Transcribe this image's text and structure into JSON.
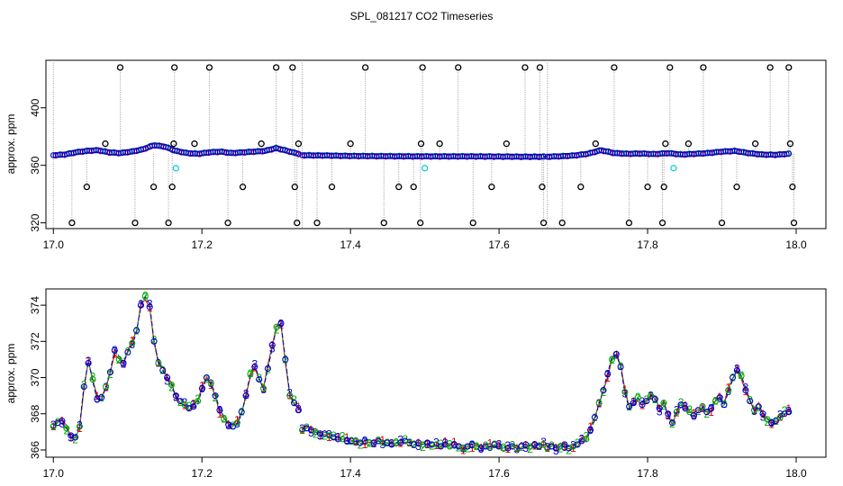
{
  "chart_data": [
    {
      "type": "scatter",
      "panel": "top",
      "title": "SPL_081217  CO2 Timeseries",
      "xlabel": "",
      "ylabel": "approx. ppm",
      "xlim": [
        16.99,
        18.04
      ],
      "ylim": [
        316,
        433
      ],
      "xticks": [
        17.0,
        17.2,
        17.4,
        17.6,
        17.8,
        18.0
      ],
      "xtick_labels": [
        "17.0",
        "17.2",
        "17.4",
        "17.6",
        "17.8",
        "18.0"
      ],
      "yticks": [
        320,
        360,
        400
      ],
      "ytick_labels": [
        "320",
        "360",
        "400"
      ],
      "colors": {
        "baseline": "#0000cc",
        "red": "#dd0000",
        "green": "#00aa00",
        "cyan": "#00cccc",
        "outlier": "#000000",
        "spike": "#999999"
      },
      "baseline_segments": [
        {
          "x_start": 17.0,
          "x_end": 17.33,
          "y": [
            367,
            367.5,
            369,
            370,
            370.5,
            369,
            368.5,
            369.5,
            371,
            374,
            373,
            370,
            368.5,
            368,
            369,
            369.5,
            368.5,
            369,
            369.5,
            370,
            372,
            370,
            368
          ]
        },
        {
          "x_start": 17.335,
          "x_end": 17.66,
          "y": [
            367,
            366.8,
            366.5,
            366.4,
            366.3,
            366.2,
            366.2,
            366.2,
            366.1,
            366,
            366
          ]
        },
        {
          "x_start": 17.665,
          "x_end": 17.99,
          "y": [
            366,
            366.3,
            366.8,
            368,
            370.5,
            368.5,
            368,
            368.2,
            367.8,
            368.5,
            367.5,
            368,
            368.5,
            369.5,
            370,
            368.5,
            367.5,
            367.3,
            368
          ]
        }
      ],
      "outliers": [
        {
          "x": 17.025,
          "y": 320
        },
        {
          "x": 17.045,
          "y": 345
        },
        {
          "x": 17.07,
          "y": 375
        },
        {
          "x": 17.09,
          "y": 428
        },
        {
          "x": 17.11,
          "y": 320
        },
        {
          "x": 17.135,
          "y": 345
        },
        {
          "x": 17.155,
          "y": 320
        },
        {
          "x": 17.16,
          "y": 345
        },
        {
          "x": 17.162,
          "y": 375
        },
        {
          "x": 17.163,
          "y": 428
        },
        {
          "x": 17.19,
          "y": 375
        },
        {
          "x": 17.21,
          "y": 428
        },
        {
          "x": 17.235,
          "y": 320
        },
        {
          "x": 17.255,
          "y": 345
        },
        {
          "x": 17.28,
          "y": 375
        },
        {
          "x": 17.3,
          "y": 428
        },
        {
          "x": 17.322,
          "y": 428
        },
        {
          "x": 17.325,
          "y": 345
        },
        {
          "x": 17.328,
          "y": 320
        },
        {
          "x": 17.33,
          "y": 375
        },
        {
          "x": 17.355,
          "y": 320
        },
        {
          "x": 17.375,
          "y": 345
        },
        {
          "x": 17.4,
          "y": 375
        },
        {
          "x": 17.42,
          "y": 428
        },
        {
          "x": 17.445,
          "y": 320
        },
        {
          "x": 17.465,
          "y": 345
        },
        {
          "x": 17.485,
          "y": 345
        },
        {
          "x": 17.494,
          "y": 320
        },
        {
          "x": 17.495,
          "y": 375
        },
        {
          "x": 17.497,
          "y": 428
        },
        {
          "x": 17.52,
          "y": 375
        },
        {
          "x": 17.545,
          "y": 428
        },
        {
          "x": 17.565,
          "y": 320
        },
        {
          "x": 17.59,
          "y": 345
        },
        {
          "x": 17.61,
          "y": 375
        },
        {
          "x": 17.635,
          "y": 428
        },
        {
          "x": 17.655,
          "y": 428
        },
        {
          "x": 17.658,
          "y": 345
        },
        {
          "x": 17.66,
          "y": 320
        },
        {
          "x": 17.685,
          "y": 320
        },
        {
          "x": 17.71,
          "y": 345
        },
        {
          "x": 17.73,
          "y": 375
        },
        {
          "x": 17.755,
          "y": 428
        },
        {
          "x": 17.775,
          "y": 320
        },
        {
          "x": 17.8,
          "y": 345
        },
        {
          "x": 17.82,
          "y": 320
        },
        {
          "x": 17.822,
          "y": 345
        },
        {
          "x": 17.824,
          "y": 375
        },
        {
          "x": 17.83,
          "y": 428
        },
        {
          "x": 17.855,
          "y": 375
        },
        {
          "x": 17.875,
          "y": 428
        },
        {
          "x": 17.9,
          "y": 320
        },
        {
          "x": 17.92,
          "y": 345
        },
        {
          "x": 17.945,
          "y": 375
        },
        {
          "x": 17.965,
          "y": 428
        },
        {
          "x": 17.99,
          "y": 428
        },
        {
          "x": 17.992,
          "y": 375
        },
        {
          "x": 17.995,
          "y": 345
        },
        {
          "x": 17.997,
          "y": 320
        }
      ],
      "cyan_points": [
        {
          "x": 17.165,
          "y": 358
        },
        {
          "x": 17.5,
          "y": 358
        },
        {
          "x": 17.835,
          "y": 358
        }
      ]
    },
    {
      "type": "line",
      "panel": "bottom",
      "title": "",
      "xlabel": "",
      "ylabel": "approx. ppm",
      "xlim": [
        16.99,
        18.04
      ],
      "ylim": [
        365.6,
        374.9
      ],
      "xticks": [
        17.0,
        17.2,
        17.4,
        17.6,
        17.8,
        18.0
      ],
      "xtick_labels": [
        "17.0",
        "17.2",
        "17.4",
        "17.6",
        "17.8",
        "18.0"
      ],
      "yticks": [
        366,
        368,
        370,
        372,
        374
      ],
      "ytick_labels": [
        "366",
        "368",
        "370",
        "372",
        "374"
      ],
      "series_labels": [
        "1",
        "2",
        "3"
      ],
      "series_colors": [
        "#dd0000",
        "#00aa00",
        "#0000cc"
      ],
      "segments": [
        {
          "x_start": 17.0,
          "x_end": 17.33,
          "y": [
            367.3,
            367.5,
            367.6,
            367.2,
            366.8,
            366.7,
            367.3,
            369.5,
            370.8,
            369.9,
            368.8,
            368.9,
            369.5,
            370.3,
            371.5,
            371.0,
            370.8,
            371.4,
            371.9,
            372.6,
            374.0,
            374.5,
            373.9,
            372.0,
            370.8,
            370.4,
            370.0,
            369.6,
            369.0,
            368.7,
            368.5,
            368.3,
            368.4,
            368.7,
            369.4,
            370.0,
            369.7,
            369.0,
            368.2,
            367.7,
            367.4,
            367.3,
            367.5,
            368.1,
            369.0,
            370.2,
            370.6,
            369.9,
            369.4,
            370.5,
            371.8,
            372.8,
            373.0,
            371.0,
            369.0,
            368.6,
            368.2
          ]
        },
        {
          "x_start": 17.335,
          "x_end": 17.66,
          "y": [
            367.1,
            367.2,
            367.1,
            367.0,
            366.9,
            366.9,
            366.8,
            366.7,
            366.6,
            366.6,
            366.5,
            366.5,
            366.5,
            366.4,
            366.5,
            366.4,
            366.4,
            366.5,
            366.4,
            366.4,
            366.3,
            366.4,
            366.4,
            366.5,
            366.4,
            366.3,
            366.4,
            366.3,
            366.4,
            366.3,
            366.3,
            366.2,
            366.3,
            366.2,
            366.3,
            366.2,
            366.1,
            366.2,
            366.3,
            366.2,
            366.1,
            366.2,
            366.2,
            366.3,
            366.2,
            366.1,
            366.1,
            366.2,
            366.1,
            366.2,
            366.3,
            366.2,
            366.3,
            366.2,
            366.3
          ]
        },
        {
          "x_start": 17.665,
          "x_end": 17.99,
          "y": [
            366.1,
            366.2,
            366.1,
            366.2,
            366.3,
            366.1,
            366.2,
            366.3,
            366.5,
            366.6,
            367.1,
            367.8,
            368.6,
            369.3,
            370.2,
            371.0,
            371.3,
            370.6,
            369.2,
            368.4,
            368.6,
            368.9,
            368.5,
            368.7,
            369.0,
            368.8,
            368.3,
            368.6,
            368.0,
            367.5,
            368.1,
            368.5,
            368.3,
            368.1,
            367.9,
            368.2,
            368.4,
            368.1,
            368.3,
            368.7,
            368.9,
            368.5,
            369.3,
            370.0,
            370.4,
            370.1,
            369.3,
            368.7,
            368.2,
            368.4,
            368.0,
            367.7,
            367.5,
            367.6,
            367.8,
            368.0,
            368.1
          ]
        }
      ]
    }
  ]
}
